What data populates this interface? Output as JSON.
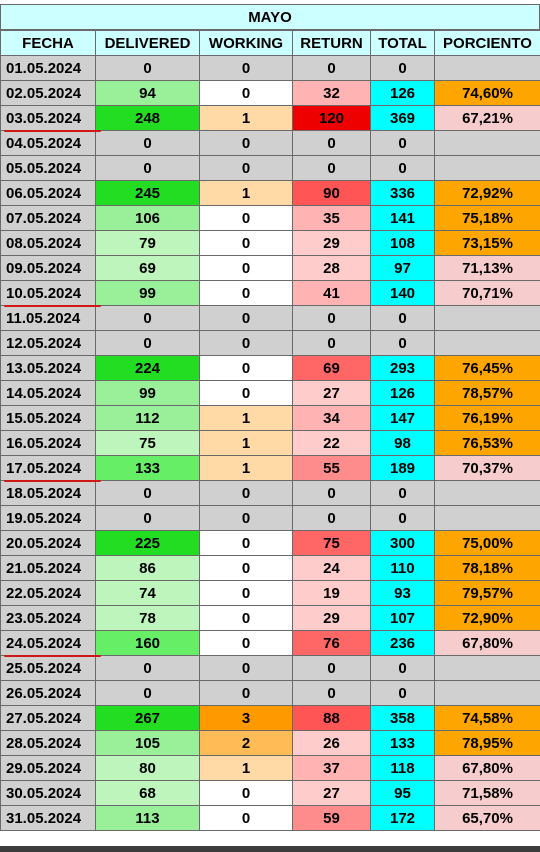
{
  "title": "MAYO",
  "columns": [
    "FECHA",
    "DELIVERED",
    "WORKING",
    "RETURN",
    "TOTAL",
    "PORCIENTO"
  ],
  "rows": [
    {
      "fecha": "01.05.2024",
      "delivered": "0",
      "working": "0",
      "return": "0",
      "total": "0",
      "pct": ""
    },
    {
      "fecha": "02.05.2024",
      "delivered": "94",
      "working": "0",
      "return": "32",
      "total": "126",
      "pct": "74,60%"
    },
    {
      "fecha": "03.05.2024",
      "delivered": "248",
      "working": "1",
      "return": "120",
      "total": "369",
      "pct": "67,21%"
    },
    {
      "fecha": "04.05.2024",
      "delivered": "0",
      "working": "0",
      "return": "0",
      "total": "0",
      "pct": ""
    },
    {
      "fecha": "05.05.2024",
      "delivered": "0",
      "working": "0",
      "return": "0",
      "total": "0",
      "pct": ""
    },
    {
      "fecha": "06.05.2024",
      "delivered": "245",
      "working": "1",
      "return": "90",
      "total": "336",
      "pct": "72,92%"
    },
    {
      "fecha": "07.05.2024",
      "delivered": "106",
      "working": "0",
      "return": "35",
      "total": "141",
      "pct": "75,18%"
    },
    {
      "fecha": "08.05.2024",
      "delivered": "79",
      "working": "0",
      "return": "29",
      "total": "108",
      "pct": "73,15%"
    },
    {
      "fecha": "09.05.2024",
      "delivered": "69",
      "working": "0",
      "return": "28",
      "total": "97",
      "pct": "71,13%"
    },
    {
      "fecha": "10.05.2024",
      "delivered": "99",
      "working": "0",
      "return": "41",
      "total": "140",
      "pct": "70,71%"
    },
    {
      "fecha": "11.05.2024",
      "delivered": "0",
      "working": "0",
      "return": "0",
      "total": "0",
      "pct": ""
    },
    {
      "fecha": "12.05.2024",
      "delivered": "0",
      "working": "0",
      "return": "0",
      "total": "0",
      "pct": ""
    },
    {
      "fecha": "13.05.2024",
      "delivered": "224",
      "working": "0",
      "return": "69",
      "total": "293",
      "pct": "76,45%"
    },
    {
      "fecha": "14.05.2024",
      "delivered": "99",
      "working": "0",
      "return": "27",
      "total": "126",
      "pct": "78,57%"
    },
    {
      "fecha": "15.05.2024",
      "delivered": "112",
      "working": "1",
      "return": "34",
      "total": "147",
      "pct": "76,19%"
    },
    {
      "fecha": "16.05.2024",
      "delivered": "75",
      "working": "1",
      "return": "22",
      "total": "98",
      "pct": "76,53%"
    },
    {
      "fecha": "17.05.2024",
      "delivered": "133",
      "working": "1",
      "return": "55",
      "total": "189",
      "pct": "70,37%"
    },
    {
      "fecha": "18.05.2024",
      "delivered": "0",
      "working": "0",
      "return": "0",
      "total": "0",
      "pct": ""
    },
    {
      "fecha": "19.05.2024",
      "delivered": "0",
      "working": "0",
      "return": "0",
      "total": "0",
      "pct": ""
    },
    {
      "fecha": "20.05.2024",
      "delivered": "225",
      "working": "0",
      "return": "75",
      "total": "300",
      "pct": "75,00%"
    },
    {
      "fecha": "21.05.2024",
      "delivered": "86",
      "working": "0",
      "return": "24",
      "total": "110",
      "pct": "78,18%"
    },
    {
      "fecha": "22.05.2024",
      "delivered": "74",
      "working": "0",
      "return": "19",
      "total": "93",
      "pct": "79,57%"
    },
    {
      "fecha": "23.05.2024",
      "delivered": "78",
      "working": "0",
      "return": "29",
      "total": "107",
      "pct": "72,90%"
    },
    {
      "fecha": "24.05.2024",
      "delivered": "160",
      "working": "0",
      "return": "76",
      "total": "236",
      "pct": "67,80%"
    },
    {
      "fecha": "25.05.2024",
      "delivered": "0",
      "working": "0",
      "return": "0",
      "total": "0",
      "pct": ""
    },
    {
      "fecha": "26.05.2024",
      "delivered": "0",
      "working": "0",
      "return": "0",
      "total": "0",
      "pct": ""
    },
    {
      "fecha": "27.05.2024",
      "delivered": "267",
      "working": "3",
      "return": "88",
      "total": "358",
      "pct": "74,58%"
    },
    {
      "fecha": "28.05.2024",
      "delivered": "105",
      "working": "2",
      "return": "26",
      "total": "133",
      "pct": "78,95%"
    },
    {
      "fecha": "29.05.2024",
      "delivered": "80",
      "working": "1",
      "return": "37",
      "total": "118",
      "pct": "67,80%"
    },
    {
      "fecha": "30.05.2024",
      "delivered": "68",
      "working": "0",
      "return": "27",
      "total": "95",
      "pct": "71,58%"
    },
    {
      "fecha": "31.05.2024",
      "delivered": "113",
      "working": "0",
      "return": "59",
      "total": "172",
      "pct": "65,70%"
    }
  ],
  "underlined_dates": [
    "03.05.2024",
    "10.05.2024",
    "17.05.2024",
    "24.05.2024"
  ],
  "colors": {
    "header": "#ccffff",
    "grey": "#d0d0d0",
    "total": "#00ffff",
    "pct_high": "#ffa500",
    "pct_low": "#f7cccc",
    "underline": "#d01818"
  }
}
